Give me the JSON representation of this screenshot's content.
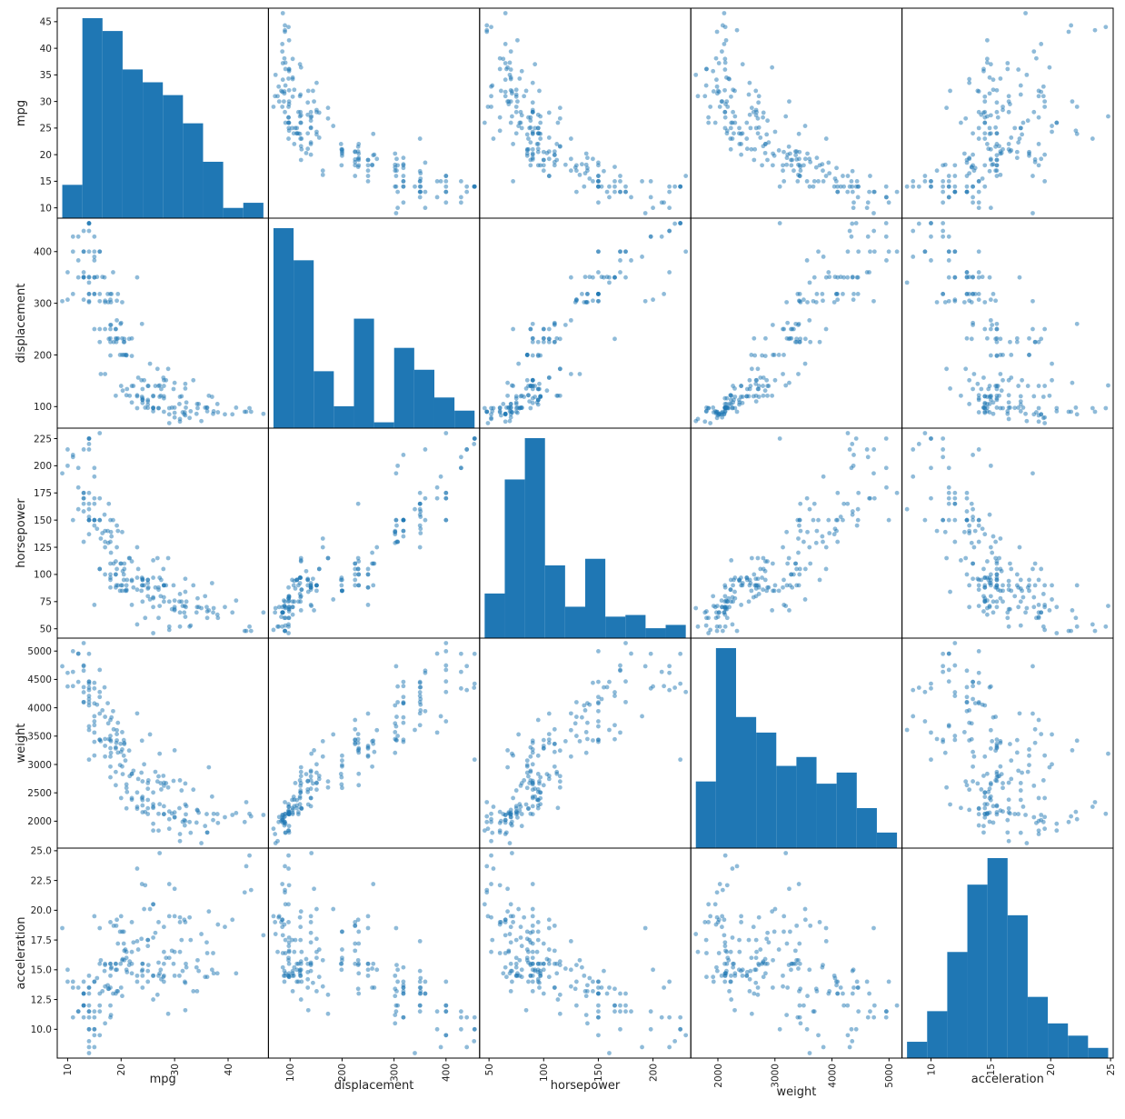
{
  "chart_data": {
    "type": "scatter",
    "subtype": "scatter_matrix",
    "grid": false,
    "point_color": "#1f77b4",
    "point_alpha": 0.5,
    "hist_color": "#1f77b4",
    "variables": [
      "mpg",
      "displacement",
      "horsepower",
      "weight",
      "acceleration"
    ],
    "axis_limits": {
      "mpg": [
        8.06,
        47.54
      ],
      "displacement": [
        58.3,
        464.7
      ],
      "horsepower": [
        41.4,
        234.6
      ],
      "weight": [
        1525,
        5228
      ],
      "acceleration": [
        7.58,
        25.22
      ]
    },
    "data_range": {
      "mpg": [
        9,
        46.6
      ],
      "displacement": [
        68,
        455
      ],
      "horsepower": [
        46,
        230
      ],
      "weight": [
        1613,
        5140
      ],
      "acceleration": [
        8,
        24.8
      ]
    },
    "y_ticks": {
      "mpg": [
        "10",
        "15",
        "20",
        "25",
        "30",
        "35",
        "40",
        "45"
      ],
      "displacement": [
        "100",
        "200",
        "300",
        "400"
      ],
      "horsepower": [
        "50",
        "75",
        "100",
        "125",
        "150",
        "175",
        "200",
        "225"
      ],
      "weight": [
        "2000",
        "2500",
        "3000",
        "3500",
        "4000",
        "4500",
        "5000"
      ],
      "acceleration": [
        "10.0",
        "12.5",
        "15.0",
        "17.5",
        "20.0",
        "22.5",
        "25.0"
      ]
    },
    "x_ticks": {
      "mpg": [
        "10",
        "20",
        "30",
        "40"
      ],
      "displacement": [
        "100",
        "200",
        "300",
        "400"
      ],
      "horsepower": [
        "50",
        "100",
        "150",
        "200"
      ],
      "weight": [
        "2000",
        "3000",
        "4000",
        "5000"
      ],
      "acceleration": [
        "10",
        "15",
        "20",
        "25"
      ]
    },
    "histograms": {
      "bins": 10,
      "mpg": [
        13,
        78,
        73,
        58,
        53,
        48,
        37,
        22,
        4,
        6
      ],
      "displacement": [
        137,
        115,
        39,
        15,
        75,
        4,
        55,
        40,
        21,
        12
      ],
      "horsepower": [
        27,
        96,
        121,
        44,
        19,
        48,
        13,
        14,
        6,
        8
      ],
      "weight": [
        30,
        90,
        59,
        52,
        37,
        41,
        29,
        34,
        18,
        7
      ],
      "acceleration": [
        8,
        23,
        52,
        85,
        98,
        70,
        30,
        17,
        11,
        5
      ]
    },
    "columns": [
      "mpg",
      "displacement",
      "horsepower",
      "weight",
      "acceleration"
    ],
    "points": [
      [
        18,
        307,
        130,
        3504,
        12
      ],
      [
        15,
        350,
        165,
        3693,
        11.5
      ],
      [
        18,
        318,
        150,
        3436,
        11
      ],
      [
        16,
        304,
        150,
        3433,
        12
      ],
      [
        17,
        302,
        140,
        3449,
        10.5
      ],
      [
        15,
        429,
        198,
        4341,
        10
      ],
      [
        14,
        454,
        220,
        4354,
        9
      ],
      [
        14,
        440,
        215,
        4312,
        8.5
      ],
      [
        14,
        455,
        225,
        4425,
        10
      ],
      [
        15,
        390,
        190,
        3850,
        8.5
      ],
      [
        15,
        383,
        170,
        3563,
        10
      ],
      [
        14,
        340,
        160,
        3609,
        8
      ],
      [
        15,
        400,
        150,
        3761,
        9.5
      ],
      [
        14,
        455,
        225,
        3086,
        10
      ],
      [
        24,
        113,
        95,
        2372,
        15
      ],
      [
        22,
        198,
        95,
        2833,
        15.5
      ],
      [
        18,
        199,
        97,
        2774,
        15.5
      ],
      [
        21,
        200,
        85,
        2587,
        16
      ],
      [
        27,
        97,
        88,
        2130,
        14.5
      ],
      [
        26,
        97,
        46,
        1835,
        20.5
      ],
      [
        25,
        110,
        87,
        2672,
        17.5
      ],
      [
        24,
        107,
        90,
        2430,
        14.5
      ],
      [
        25,
        104,
        95,
        2375,
        17.5
      ],
      [
        26,
        121,
        113,
        2234,
        12.5
      ],
      [
        21,
        199,
        90,
        2648,
        15
      ],
      [
        10,
        360,
        215,
        4615,
        14
      ],
      [
        10,
        307,
        200,
        4376,
        15
      ],
      [
        11,
        318,
        210,
        4382,
        13.5
      ],
      [
        9,
        304,
        193,
        4732,
        18.5
      ],
      [
        28,
        140,
        90,
        2264,
        15.5
      ],
      [
        25,
        113,
        95,
        2228,
        14
      ],
      [
        19,
        232,
        100,
        2634,
        13
      ],
      [
        16,
        225,
        105,
        3439,
        15.5
      ],
      [
        17,
        250,
        100,
        3329,
        15.5
      ],
      [
        19,
        250,
        88,
        3302,
        15.5
      ],
      [
        18,
        232,
        100,
        3288,
        15.5
      ],
      [
        14,
        350,
        165,
        4209,
        12
      ],
      [
        14,
        400,
        175,
        4464,
        11.5
      ],
      [
        14,
        351,
        153,
        4154,
        13.5
      ],
      [
        14,
        318,
        150,
        4096,
        13
      ],
      [
        12,
        383,
        180,
        4955,
        11.5
      ],
      [
        13,
        400,
        170,
        4746,
        12
      ],
      [
        13,
        400,
        175,
        5140,
        12
      ],
      [
        18,
        258,
        110,
        2962,
        13.5
      ],
      [
        22,
        140,
        72,
        2408,
        19
      ],
      [
        19,
        250,
        100,
        3282,
        15
      ],
      [
        18,
        250,
        88,
        3139,
        14.5
      ],
      [
        23,
        122,
        86,
        2220,
        14
      ],
      [
        28,
        116,
        90,
        2123,
        14
      ],
      [
        30,
        79,
        70,
        2074,
        19.5
      ],
      [
        30,
        88,
        76,
        2065,
        14.5
      ],
      [
        31,
        71,
        65,
        1773,
        19
      ],
      [
        35,
        72,
        69,
        1613,
        18
      ],
      [
        27,
        97,
        60,
        1834,
        19
      ],
      [
        26,
        91,
        70,
        1955,
        20.5
      ],
      [
        24,
        113,
        95,
        2278,
        15.5
      ],
      [
        25,
        97.5,
        80,
        2126,
        17
      ],
      [
        23,
        97,
        54,
        2254,
        23.5
      ],
      [
        20,
        140,
        90,
        2408,
        19.5
      ],
      [
        21,
        122,
        86,
        2226,
        16.5
      ],
      [
        13,
        350,
        165,
        4274,
        12
      ],
      [
        29,
        85,
        52,
        2035,
        22.2
      ],
      [
        24.5,
        98,
        60,
        2164,
        22.1
      ],
      [
        26,
        97,
        78,
        2300,
        14.5
      ],
      [
        43.1,
        90,
        48,
        1985,
        21.5
      ],
      [
        36.1,
        98,
        66,
        1800,
        14.4
      ],
      [
        32.8,
        78,
        52,
        1985,
        19.4
      ],
      [
        39.4,
        85,
        70,
        2070,
        18.6
      ],
      [
        36.1,
        91,
        60,
        1800,
        16.4
      ],
      [
        19.9,
        260,
        110,
        3365,
        15.5
      ],
      [
        19.4,
        318,
        140,
        3735,
        13.2
      ],
      [
        20.2,
        302,
        139,
        3570,
        12.8
      ],
      [
        19.2,
        231,
        105,
        3535,
        19.2
      ],
      [
        20.5,
        200,
        95,
        3155,
        18.2
      ],
      [
        20.2,
        200,
        85,
        2965,
        15.8
      ],
      [
        25.1,
        140,
        88,
        2720,
        15.4
      ],
      [
        20.5,
        225,
        100,
        3430,
        17.2
      ],
      [
        19.4,
        232,
        90,
        3210,
        17.2
      ],
      [
        20.6,
        231,
        105,
        3380,
        15.8
      ],
      [
        20.8,
        200,
        85,
        3070,
        16.7
      ],
      [
        18.6,
        225,
        110,
        3620,
        18.7
      ],
      [
        18.1,
        258,
        120,
        3410,
        15.1
      ],
      [
        19.2,
        305,
        145,
        3425,
        13.2
      ],
      [
        17.7,
        231,
        165,
        3445,
        13.4
      ],
      [
        18.1,
        302,
        139,
        3205,
        11.2
      ],
      [
        17.5,
        318,
        140,
        4080,
        13.7
      ],
      [
        30,
        98,
        68,
        2155,
        16.5
      ],
      [
        27.5,
        134,
        95,
        2560,
        14.2
      ],
      [
        27.2,
        119,
        97,
        2300,
        14.7
      ],
      [
        30.9,
        105,
        75,
        2230,
        14.5
      ],
      [
        21.1,
        134,
        95,
        2515,
        14.8
      ],
      [
        23.2,
        156,
        105,
        2745,
        16.7
      ],
      [
        23.8,
        151,
        85,
        2855,
        17.6
      ],
      [
        23.9,
        119,
        97,
        2405,
        14.9
      ],
      [
        20.3,
        131,
        103,
        2830,
        15.9
      ],
      [
        17,
        163,
        125,
        3140,
        13.6
      ],
      [
        21.6,
        121,
        115,
        2795,
        15.7
      ],
      [
        16.2,
        163,
        133,
        3410,
        15.8
      ],
      [
        31.5,
        89,
        71,
        1990,
        14.9
      ],
      [
        29.5,
        98,
        68,
        2135,
        16.6
      ],
      [
        21.5,
        231,
        115,
        3245,
        15.4
      ],
      [
        19.8,
        200,
        85,
        2990,
        18.2
      ],
      [
        22.3,
        140,
        88,
        2890,
        17.3
      ],
      [
        20.2,
        232,
        90,
        3265,
        18.2
      ],
      [
        20.6,
        225,
        110,
        3360,
        16.6
      ],
      [
        17,
        305,
        130,
        3840,
        15.4
      ],
      [
        17.6,
        302,
        129,
        3725,
        13.4
      ],
      [
        16.5,
        351,
        138,
        3955,
        13.2
      ],
      [
        18.2,
        318,
        135,
        3830,
        15.2
      ],
      [
        16.9,
        350,
        155,
        4360,
        14.9
      ],
      [
        15.5,
        351,
        142,
        4054,
        14.3
      ],
      [
        19.2,
        267,
        125,
        3605,
        15
      ],
      [
        18.5,
        360,
        150,
        3940,
        13
      ],
      [
        31.9,
        89,
        71,
        1925,
        14
      ],
      [
        34.1,
        86,
        65,
        1975,
        15.2
      ],
      [
        35.7,
        98,
        80,
        1915,
        14.4
      ],
      [
        27.4,
        121,
        80,
        2670,
        15
      ],
      [
        25.4,
        183,
        77,
        3530,
        20.1
      ],
      [
        23,
        350,
        125,
        3900,
        17.4
      ],
      [
        27.2,
        141,
        71,
        3190,
        24.8
      ],
      [
        23.9,
        260,
        90,
        3420,
        22.2
      ],
      [
        34.2,
        105,
        70,
        2200,
        13.2
      ],
      [
        34.5,
        105,
        70,
        2150,
        14.9
      ],
      [
        31.8,
        85,
        65,
        2020,
        19.2
      ],
      [
        37.3,
        91,
        69,
        2130,
        14.7
      ],
      [
        28.4,
        151,
        90,
        2670,
        16
      ],
      [
        28.8,
        173,
        115,
        2595,
        11.3
      ],
      [
        26.8,
        173,
        115,
        2700,
        12.9
      ],
      [
        33.5,
        151,
        90,
        2556,
        13.2
      ],
      [
        41.5,
        98,
        76,
        2144,
        14.7
      ],
      [
        38.1,
        89,
        60,
        1968,
        18.8
      ],
      [
        32.1,
        98,
        70,
        2120,
        15.5
      ],
      [
        37.2,
        86,
        65,
        2019,
        16.4
      ],
      [
        28,
        151,
        90,
        2678,
        16.5
      ],
      [
        26.4,
        140,
        88,
        2870,
        18.1
      ],
      [
        24.3,
        151,
        90,
        3003,
        20.1
      ],
      [
        19.1,
        225,
        90,
        3381,
        18.7
      ],
      [
        34.3,
        97,
        78,
        2188,
        15.8
      ],
      [
        29.8,
        134,
        90,
        2711,
        15.5
      ],
      [
        31.3,
        120,
        75,
        2542,
        17.5
      ],
      [
        37,
        119,
        92,
        2434,
        15
      ],
      [
        32.2,
        108,
        75,
        2265,
        15.2
      ],
      [
        46.6,
        86,
        65,
        2110,
        17.9
      ],
      [
        27.9,
        156,
        105,
        2800,
        14.4
      ],
      [
        40.8,
        85,
        65,
        2110,
        19.2
      ],
      [
        44.3,
        90,
        48,
        2085,
        21.7
      ],
      [
        43.4,
        90,
        48,
        2335,
        23.7
      ],
      [
        36.4,
        121,
        67,
        2950,
        19.9
      ],
      [
        30,
        146,
        67,
        3250,
        21.8
      ],
      [
        44,
        97,
        52,
        2130,
        24.6
      ],
      [
        32,
        135,
        84,
        2295,
        11.6
      ],
      [
        28,
        120,
        79,
        2625,
        18.6
      ],
      [
        31,
        119,
        82,
        2720,
        19.4
      ],
      [
        38,
        105,
        63,
        2125,
        14.7
      ],
      [
        36,
        98,
        70,
        2125,
        17.3
      ],
      [
        27,
        140,
        86,
        2790,
        15.6
      ],
      [
        22,
        232,
        112,
        2835,
        14.7
      ],
      [
        32,
        144,
        96,
        2665,
        13.9
      ],
      [
        16,
        318,
        150,
        4190,
        13
      ],
      [
        15,
        318,
        150,
        3399,
        11
      ],
      [
        12,
        429,
        198,
        4952,
        11.5
      ],
      [
        13,
        360,
        170,
        4654,
        13
      ],
      [
        11,
        400,
        150,
        4997,
        14
      ],
      [
        12,
        350,
        160,
        4456,
        13.5
      ],
      [
        13,
        307,
        130,
        4098,
        14
      ],
      [
        16,
        400,
        170,
        4668,
        11.5
      ],
      [
        15,
        318,
        150,
        4077,
        14
      ],
      [
        14,
        302,
        137,
        4042,
        14.5
      ],
      [
        13,
        350,
        175,
        4100,
        13
      ],
      [
        13,
        351,
        158,
        4363,
        13
      ],
      [
        15,
        250,
        72,
        3158,
        19.5
      ],
      [
        16,
        250,
        105,
        3897,
        18.5
      ],
      [
        13,
        440,
        215,
        4735,
        11
      ],
      [
        14,
        318,
        150,
        4457,
        13.5
      ],
      [
        14,
        455,
        225,
        4951,
        11
      ],
      [
        15,
        350,
        145,
        4440,
        14
      ],
      [
        18,
        225,
        95,
        3785,
        19
      ],
      [
        14,
        304,
        150,
        3672,
        11.5
      ],
      [
        16,
        400,
        230,
        4278,
        9.5
      ],
      [
        11,
        429,
        208,
        4633,
        11
      ],
      [
        20,
        262,
        110,
        3221,
        13.5
      ],
      [
        26,
        98,
        79,
        2255,
        17.7
      ],
      [
        29,
        97,
        75,
        2171,
        16
      ],
      [
        24,
        134,
        96,
        2702,
        13.5
      ],
      [
        33,
        91,
        53,
        1795,
        17.5
      ],
      [
        25,
        140,
        92,
        2572,
        14.9
      ],
      [
        31,
        76,
        52,
        1649,
        16.5
      ],
      [
        32,
        83,
        61,
        2003,
        19
      ],
      [
        28,
        90,
        75,
        2125,
        14.5
      ],
      [
        24,
        116,
        75,
        2158,
        15.5
      ],
      [
        26,
        120,
        97,
        2506,
        14.5
      ],
      [
        22,
        108,
        94,
        2379,
        16.5
      ],
      [
        23,
        120,
        97,
        2506,
        14.5
      ],
      [
        29,
        68,
        49,
        1867,
        19.5
      ],
      [
        19,
        121,
        112,
        2868,
        15.5
      ]
    ]
  }
}
